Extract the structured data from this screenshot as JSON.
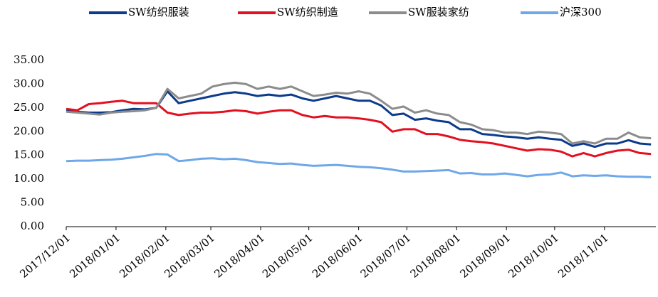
{
  "chart_data": {
    "type": "line",
    "x": [
      "2017/12/01",
      "2017/12/08",
      "2017/12/15",
      "2017/12/22",
      "2017/12/29",
      "2018/01/05",
      "2018/01/12",
      "2018/01/19",
      "2018/01/26",
      "2018/02/02",
      "2018/02/09",
      "2018/02/16",
      "2018/02/23",
      "2018/03/02",
      "2018/03/09",
      "2018/03/16",
      "2018/03/23",
      "2018/03/30",
      "2018/04/06",
      "2018/04/13",
      "2018/04/20",
      "2018/04/27",
      "2018/05/04",
      "2018/05/11",
      "2018/05/18",
      "2018/05/25",
      "2018/06/01",
      "2018/06/08",
      "2018/06/15",
      "2018/06/22",
      "2018/06/29",
      "2018/07/06",
      "2018/07/13",
      "2018/07/20",
      "2018/07/27",
      "2018/08/03",
      "2018/08/10",
      "2018/08/17",
      "2018/08/24",
      "2018/08/31",
      "2018/09/07",
      "2018/09/14",
      "2018/09/21",
      "2018/09/28",
      "2018/10/05",
      "2018/10/12",
      "2018/10/19",
      "2018/10/26",
      "2018/11/02",
      "2018/11/09",
      "2018/11/16",
      "2018/11/23",
      "2018/11/30"
    ],
    "series": [
      {
        "name": "SW纺织服装",
        "color": "#0c3b8c",
        "values": [
          24.5,
          24.2,
          24.0,
          24.0,
          24.1,
          24.5,
          24.8,
          24.7,
          25.0,
          28.5,
          26.0,
          26.5,
          27.0,
          27.5,
          28.0,
          28.3,
          28.0,
          27.5,
          27.8,
          27.5,
          27.8,
          27.0,
          26.5,
          27.0,
          27.5,
          27.0,
          26.5,
          26.5,
          25.5,
          23.5,
          23.8,
          22.5,
          22.8,
          22.3,
          22.0,
          20.5,
          20.5,
          19.5,
          19.3,
          19.0,
          18.8,
          18.5,
          18.8,
          18.5,
          18.3,
          17.0,
          17.5,
          16.8,
          17.5,
          17.5,
          18.2,
          17.5,
          17.3
        ]
      },
      {
        "name": "SW纺织制造",
        "color": "#e3101f",
        "values": [
          24.8,
          24.5,
          25.8,
          26.0,
          26.3,
          26.5,
          26.0,
          26.0,
          26.0,
          24.0,
          23.5,
          23.8,
          24.0,
          24.0,
          24.2,
          24.5,
          24.3,
          23.8,
          24.2,
          24.5,
          24.5,
          23.5,
          23.0,
          23.3,
          23.0,
          23.0,
          22.8,
          22.5,
          22.0,
          20.0,
          20.5,
          20.5,
          19.5,
          19.5,
          19.0,
          18.3,
          18.0,
          17.8,
          17.5,
          17.0,
          16.5,
          16.0,
          16.3,
          16.2,
          15.8,
          14.8,
          15.5,
          14.8,
          15.5,
          16.0,
          16.2,
          15.5,
          15.3
        ]
      },
      {
        "name": "SW服装家纺",
        "color": "#8c8c8c",
        "values": [
          24.2,
          24.0,
          23.8,
          23.6,
          24.0,
          24.2,
          24.3,
          24.5,
          25.0,
          29.0,
          27.0,
          27.5,
          28.0,
          29.5,
          30.0,
          30.3,
          30.0,
          29.0,
          29.5,
          29.0,
          29.5,
          28.5,
          27.5,
          27.8,
          28.2,
          28.0,
          28.5,
          28.0,
          26.5,
          24.8,
          25.3,
          24.0,
          24.5,
          23.8,
          23.5,
          22.0,
          21.5,
          20.5,
          20.3,
          19.8,
          19.8,
          19.5,
          20.0,
          19.8,
          19.5,
          17.5,
          18.0,
          17.5,
          18.5,
          18.5,
          19.8,
          18.8,
          18.6
        ]
      },
      {
        "name": "沪深300",
        "color": "#6fa8e8",
        "values": [
          13.8,
          13.9,
          13.9,
          14.0,
          14.1,
          14.3,
          14.6,
          14.9,
          15.3,
          15.2,
          13.8,
          14.0,
          14.3,
          14.4,
          14.2,
          14.3,
          14.0,
          13.6,
          13.4,
          13.2,
          13.3,
          13.0,
          12.8,
          12.9,
          13.0,
          12.8,
          12.6,
          12.5,
          12.3,
          12.0,
          11.6,
          11.6,
          11.7,
          11.8,
          11.9,
          11.2,
          11.3,
          11.0,
          11.0,
          11.2,
          10.9,
          10.6,
          10.9,
          11.0,
          11.4,
          10.6,
          10.8,
          10.7,
          10.8,
          10.6,
          10.5,
          10.5,
          10.4
        ]
      }
    ],
    "xlim": [
      "2017/12/01",
      "2018/12/03"
    ],
    "xticks": [
      "2017/12/01",
      "2018/01/01",
      "2018/02/01",
      "2018/03/01",
      "2018/04/01",
      "2018/05/01",
      "2018/06/01",
      "2018/07/01",
      "2018/08/01",
      "2018/09/01",
      "2018/10/01",
      "2018/11/01"
    ],
    "ylim": [
      0,
      35
    ],
    "yticks": [
      {
        "value": 0,
        "label": "0.00"
      },
      {
        "value": 5,
        "label": "5.00"
      },
      {
        "value": 10,
        "label": "10.00"
      },
      {
        "value": 15,
        "label": "15.00"
      },
      {
        "value": 20,
        "label": "20.00"
      },
      {
        "value": 25,
        "label": "25.00"
      },
      {
        "value": 30,
        "label": "30.00"
      },
      {
        "value": 35,
        "label": "35.00"
      }
    ],
    "grid": false,
    "legend": "top"
  }
}
